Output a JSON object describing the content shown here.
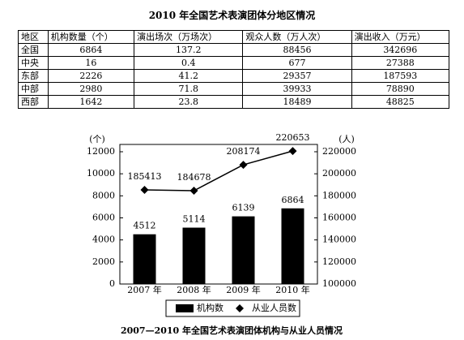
{
  "table": {
    "title": "2010 年全国艺术表演团体分地区情况",
    "header": [
      "地区",
      "机构数量（个）",
      "演出场次（万场次）",
      "观众人数（万人次）",
      "演出收入（万元）"
    ],
    "rows": [
      [
        "全国",
        6864,
        137.2,
        88456,
        342696
      ],
      [
        "中央",
        16,
        0.4,
        677,
        27388
      ],
      [
        "东部",
        2226,
        41.2,
        29357,
        187593
      ],
      [
        "中部",
        2980,
        71.8,
        39933,
        78890
      ],
      [
        "西部",
        1642,
        23.8,
        18489,
        48825
      ]
    ]
  },
  "chart_data": {
    "type": "bar",
    "title": "2007—2010 年全国艺术表演团体机构与从业人员情况",
    "ylabel": "(个)",
    "y2label": "(人)",
    "categories": [
      "2007 年",
      "2008 年",
      "2009 年",
      "2010 年"
    ],
    "series": [
      {
        "name": "机构数",
        "type": "bar",
        "color": "#000000",
        "values": [
          4512,
          5114,
          6139,
          6864
        ]
      },
      {
        "name": "从业人员数",
        "type": "line",
        "axis": "y2",
        "color": "#000000",
        "values": [
          185413,
          184678,
          208174,
          220653
        ]
      }
    ],
    "ylim": [
      0,
      12000
    ],
    "yticks": [
      0,
      2000,
      4000,
      6000,
      8000,
      10000,
      12000
    ],
    "y2lim": [
      100000,
      220000
    ],
    "y2ticks": [
      100000,
      120000,
      140000,
      160000,
      180000,
      200000,
      220000
    ],
    "grid": false,
    "legend": "bottom"
  }
}
